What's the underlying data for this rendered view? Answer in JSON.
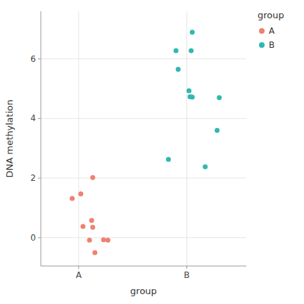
{
  "chart_data": {
    "type": "scatter",
    "xlabel": "group",
    "ylabel": "DNA methylation",
    "legend_title": "group",
    "series": [
      {
        "name": "A",
        "color": "#F08070",
        "x": [
          -0.06,
          0.02,
          0.04,
          0.1,
          0.12,
          0.13,
          0.13,
          0.15,
          0.23,
          0.27
        ],
        "values": [
          1.32,
          1.47,
          0.38,
          -0.08,
          0.58,
          0.35,
          2.02,
          -0.5,
          -0.07,
          -0.08
        ]
      },
      {
        "name": "B",
        "color": "#30B8B0",
        "x": [
          0.83,
          0.9,
          0.92,
          1.02,
          1.03,
          1.04,
          1.05,
          1.05,
          1.17,
          1.28,
          1.3
        ],
        "values": [
          2.63,
          6.28,
          5.65,
          4.93,
          4.73,
          6.28,
          4.72,
          6.9,
          2.38,
          3.6,
          4.7
        ]
      }
    ],
    "xlim": [
      -0.35,
      1.55
    ],
    "xticks": [
      {
        "value": 0,
        "label": "A"
      },
      {
        "value": 1,
        "label": "B"
      }
    ],
    "ylim": [
      -0.95,
      7.6
    ],
    "yticks": [
      0,
      2,
      4,
      6
    ],
    "grid": true,
    "legend": "right"
  }
}
